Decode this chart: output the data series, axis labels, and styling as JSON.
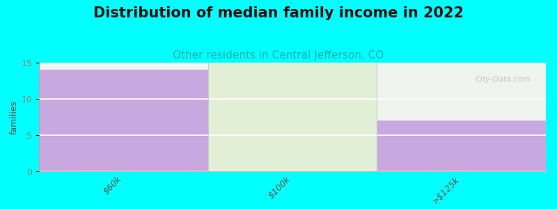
{
  "title": "Distribution of median family income in 2022",
  "subtitle": "Other residents in Central Jefferson, CO",
  "categories": [
    "$60k",
    "$100k",
    ">$125k"
  ],
  "values": [
    14,
    0,
    7
  ],
  "bar_colors": [
    "#c9a8e0",
    "#d4e8c2",
    "#c9a8e0"
  ],
  "background_color": "#00ffff",
  "plot_bg_color_top": "#f0f5f0",
  "plot_bg_color_bottom": "#e8f0e8",
  "ylabel": "families",
  "ylim": [
    0,
    15
  ],
  "yticks": [
    0,
    5,
    10,
    15
  ],
  "title_fontsize": 15,
  "subtitle_fontsize": 11,
  "subtitle_color": "#00b0b0",
  "watermark": "City-Data.com",
  "grid_color": "#cccccc",
  "tick_label_color": "#555544"
}
